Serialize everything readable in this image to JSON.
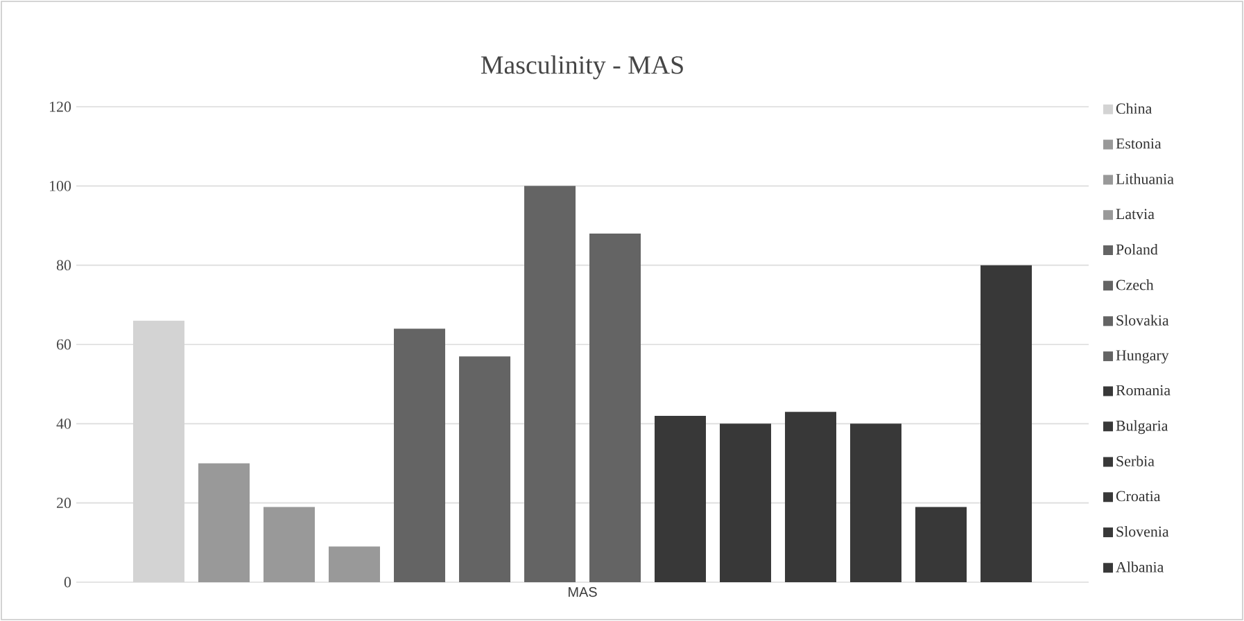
{
  "chart_data": {
    "type": "bar",
    "title": "Masculinity - MAS",
    "categories": [
      "MAS"
    ],
    "series": [
      {
        "name": "China",
        "color": "#d3d3d3",
        "values": [
          66
        ]
      },
      {
        "name": "Estonia",
        "color": "#999999",
        "values": [
          30
        ]
      },
      {
        "name": "Lithuania",
        "color": "#999999",
        "values": [
          19
        ]
      },
      {
        "name": "Latvia",
        "color": "#999999",
        "values": [
          9
        ]
      },
      {
        "name": "Poland",
        "color": "#646464",
        "values": [
          64
        ]
      },
      {
        "name": "Czech",
        "color": "#646464",
        "values": [
          57
        ]
      },
      {
        "name": "Slovakia",
        "color": "#646464",
        "values": [
          100
        ]
      },
      {
        "name": "Hungary",
        "color": "#646464",
        "values": [
          88
        ]
      },
      {
        "name": "Romania",
        "color": "#383838",
        "values": [
          42
        ]
      },
      {
        "name": "Bulgaria",
        "color": "#383838",
        "values": [
          40
        ]
      },
      {
        "name": "Serbia",
        "color": "#383838",
        "values": [
          43
        ]
      },
      {
        "name": "Croatia",
        "color": "#383838",
        "values": [
          40
        ]
      },
      {
        "name": "Slovenia",
        "color": "#383838",
        "values": [
          19
        ]
      },
      {
        "name": "Albania",
        "color": "#383838",
        "values": [
          80
        ]
      }
    ],
    "ylim": [
      0,
      120
    ],
    "yticks": [
      0,
      20,
      40,
      60,
      80,
      100,
      120
    ],
    "grid": "y",
    "legend": "right"
  }
}
